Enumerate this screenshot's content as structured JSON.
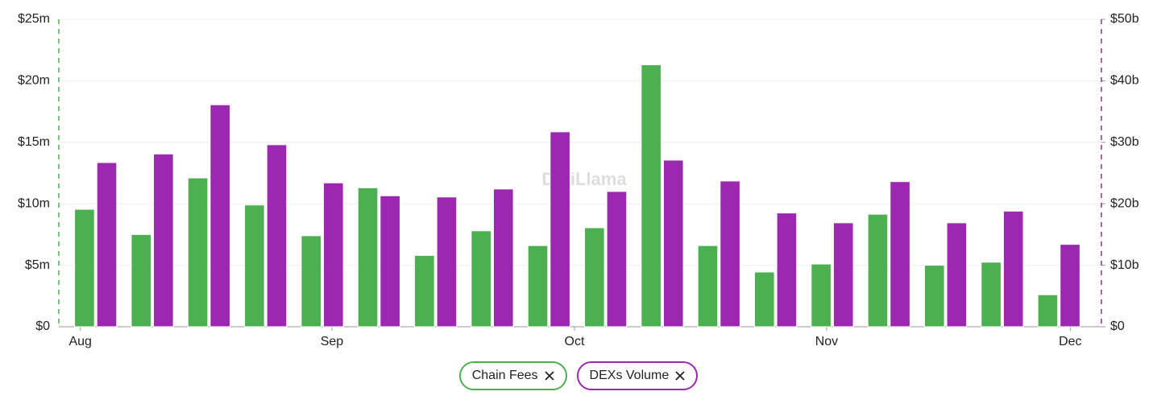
{
  "chart_data": {
    "type": "bar",
    "watermark": "DefiLlama",
    "categories": [
      null,
      null,
      null,
      null,
      null,
      null,
      null,
      null,
      null,
      null,
      null,
      null,
      null,
      null,
      null,
      null,
      null,
      null
    ],
    "xlim": [
      -0.65,
      17.75
    ],
    "xticks": [
      {
        "value": -0.27,
        "label": "Aug"
      },
      {
        "value": 4.17,
        "label": "Sep"
      },
      {
        "value": 8.45,
        "label": "Oct"
      },
      {
        "value": 12.9,
        "label": "Nov"
      },
      {
        "value": 17.2,
        "label": "Dec"
      }
    ],
    "ylim": [
      0,
      25
    ],
    "yticks": [
      {
        "value": 0,
        "label": "$0"
      },
      {
        "value": 5,
        "label": "$5m"
      },
      {
        "value": 10,
        "label": "$10m"
      },
      {
        "value": 15,
        "label": "$15m"
      },
      {
        "value": 20,
        "label": "$20m"
      },
      {
        "value": 25,
        "label": "$25m"
      }
    ],
    "y2lim": [
      0,
      50
    ],
    "y2ticks": [
      {
        "value": 0,
        "label": "$0"
      },
      {
        "value": 10,
        "label": "$10b"
      },
      {
        "value": 20,
        "label": "$20b"
      },
      {
        "value": 30,
        "label": "$30b"
      },
      {
        "value": 40,
        "label": "$40b"
      },
      {
        "value": 50,
        "label": "$50b"
      }
    ],
    "grid": true,
    "legend": "bottom",
    "series": [
      {
        "name": "Chain Fees",
        "color": "#4caf50",
        "axis": "y",
        "values": [
          9.55,
          7.5,
          12.1,
          9.9,
          7.4,
          11.3,
          5.8,
          7.8,
          6.6,
          8.05,
          21.3,
          6.6,
          4.45,
          5.1,
          9.15,
          5.0,
          5.25,
          2.6
        ]
      },
      {
        "name": "DEXs Volume",
        "color": "#9c27b0",
        "axis": "y2",
        "values": [
          26.7,
          28.1,
          36.1,
          29.6,
          23.4,
          21.3,
          21.1,
          22.4,
          31.7,
          22.0,
          27.1,
          23.7,
          18.5,
          16.9,
          23.6,
          16.9,
          18.8,
          13.4
        ]
      }
    ]
  }
}
